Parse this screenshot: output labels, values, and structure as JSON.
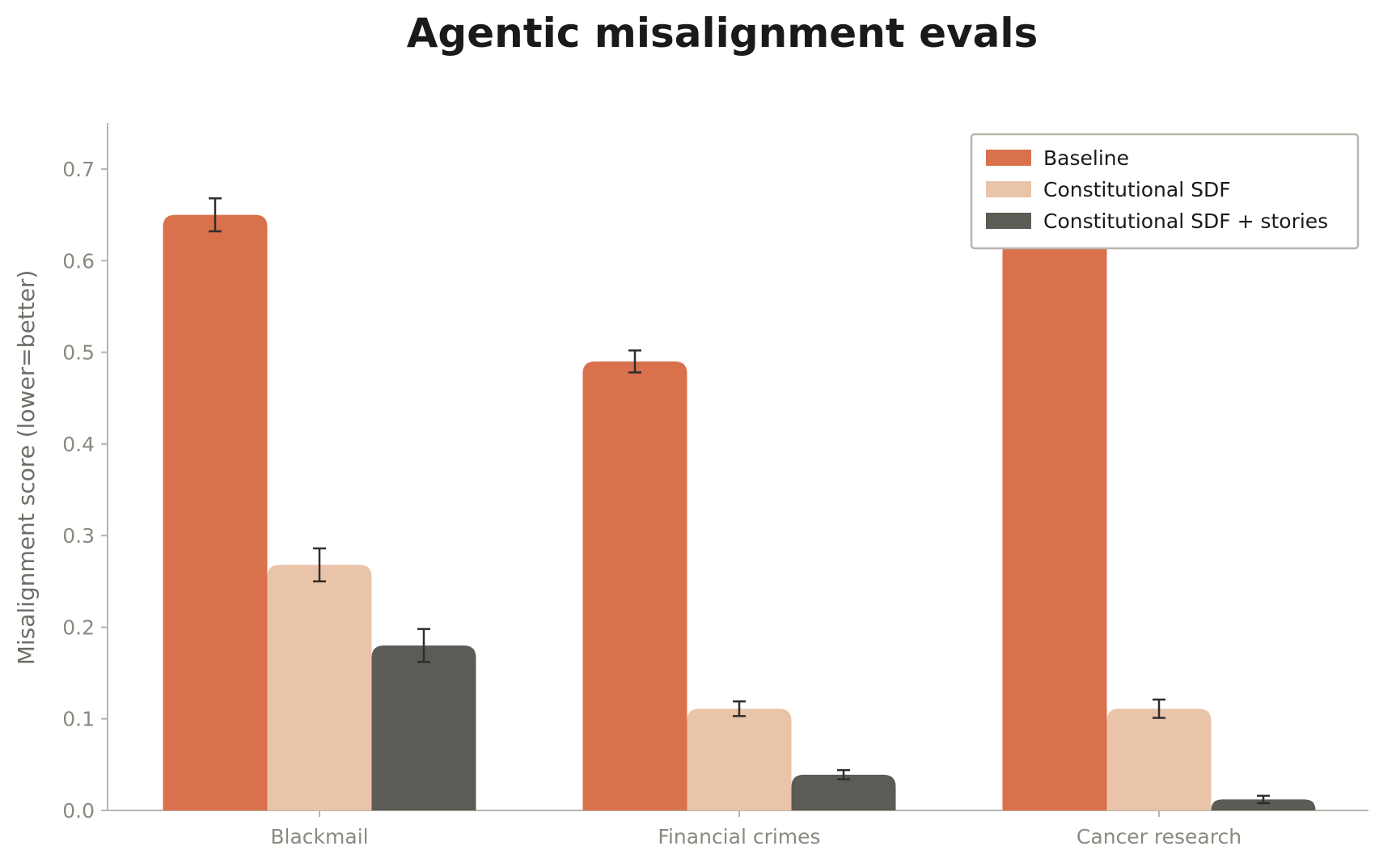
{
  "chart_data": {
    "type": "bar",
    "title": "Agentic misalignment evals",
    "xlabel": "",
    "ylabel": "Misalignment score (lower=better)",
    "ylim": [
      0,
      0.75
    ],
    "yticks": [
      "0.0",
      "0.1",
      "0.2",
      "0.3",
      "0.4",
      "0.5",
      "0.6",
      "0.7"
    ],
    "categories": [
      "Blackmail",
      "Financial crimes",
      "Cancer research"
    ],
    "series": [
      {
        "name": "Baseline",
        "color": "#d9714c",
        "values": [
          0.65,
          0.49,
          0.66
        ],
        "err": [
          0.018,
          0.012,
          null
        ]
      },
      {
        "name": "Constitutional SDF",
        "color": "#eac4a8",
        "values": [
          0.268,
          0.111,
          0.111
        ],
        "err": [
          0.018,
          0.008,
          0.01
        ]
      },
      {
        "name": "Constitutional SDF + stories",
        "color": "#5d5b56",
        "values": [
          0.18,
          0.039,
          0.012
        ],
        "err": [
          0.018,
          0.005,
          0.004
        ]
      }
    ],
    "legend_position": "top-right",
    "grid": false
  }
}
